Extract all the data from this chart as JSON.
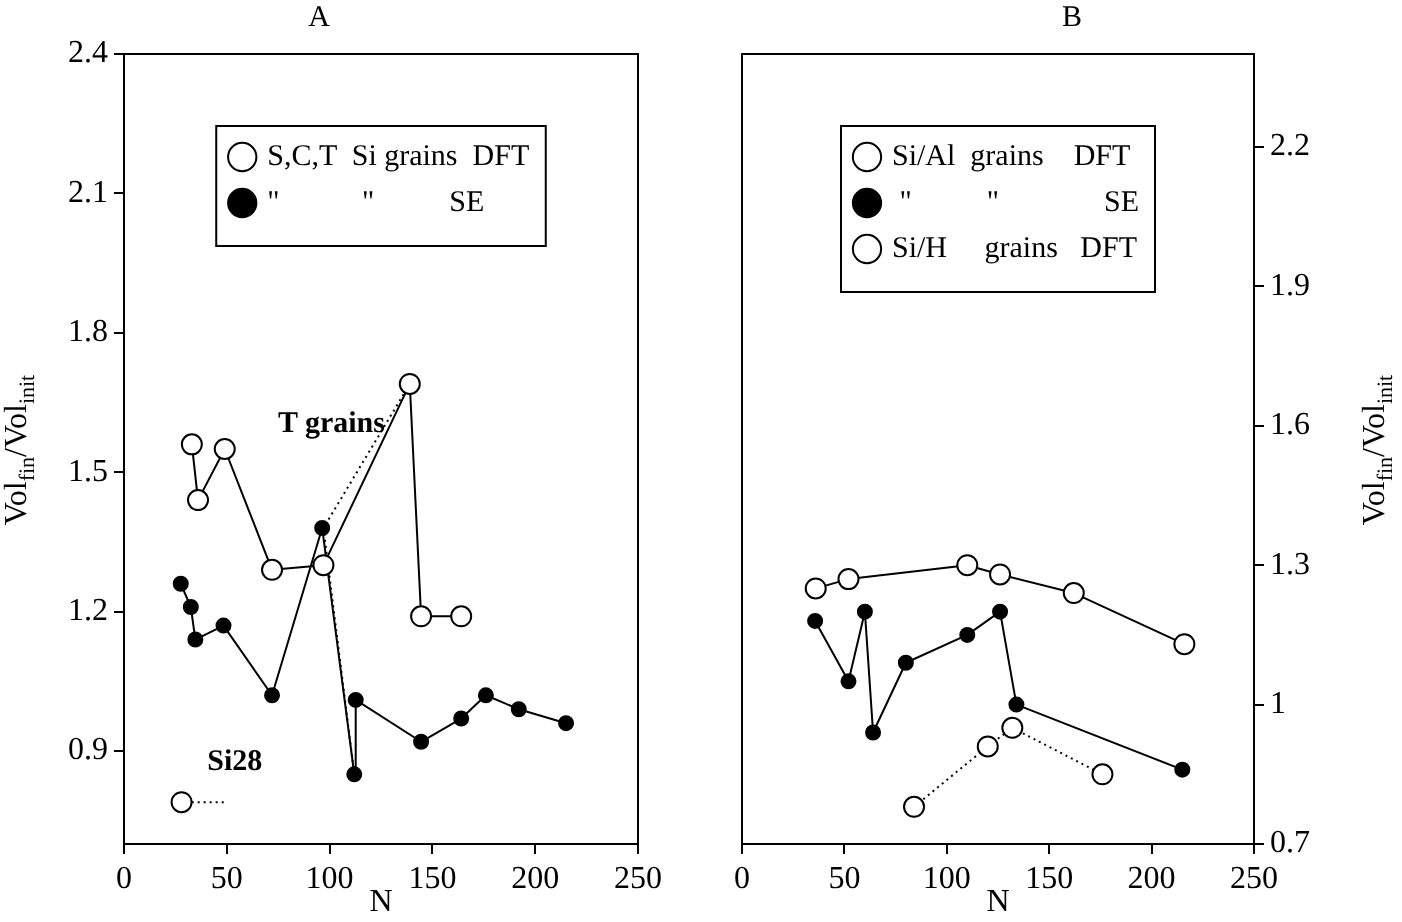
{
  "chart_data": [
    {
      "type": "line",
      "title": "A",
      "xlabel": "N",
      "ylabel": "Vol$_{fin}$/Vol$_{init}$",
      "xlim": [
        0,
        250
      ],
      "xticks": [
        0,
        50,
        100,
        150,
        200,
        250
      ],
      "ylim": [
        0.7,
        2.4
      ],
      "yticks": [
        0.9,
        1.2,
        1.5,
        1.8,
        2.1,
        2.4
      ],
      "grid": false,
      "legend": "top",
      "marker": "circle",
      "annotations": [
        {
          "text": "T grains",
          "x": 97,
          "y": 1.38
        },
        {
          "text": "Si28",
          "x": 50,
          "y": 0.79
        }
      ],
      "series": [
        {
          "name": "S,C,T  Si grains  DFT",
          "color": "#000000",
          "marker": "circle-open",
          "x": [
            33,
            36,
            49,
            72,
            97,
            139,
            144.5,
            164
          ],
          "values": [
            1.56,
            1.44,
            1.55,
            1.29,
            1.3,
            1.69,
            1.19,
            1.19
          ]
        },
        {
          "name": "\"           \"          SE",
          "color": "#000000",
          "x": [
            27.6,
            32.5,
            34.7,
            48.4,
            72,
            96.4,
            112,
            112.7,
            144.5,
            164,
            176,
            192,
            215
          ],
          "values": [
            1.26,
            1.21,
            1.14,
            1.17,
            1.02,
            1.38,
            0.85,
            1.01,
            0.92,
            0.97,
            1.02,
            0.99,
            0.96
          ]
        },
        {
          "color": "#000000",
          "marker": "circle-open",
          "x": [
            28
          ],
          "values": [
            0.79
          ]
        },
        {
          "color": "#000000",
          "marker": "none",
          "line_style": "dotted",
          "x": [
            139,
            97,
            112
          ],
          "values": [
            1.69,
            1.38,
            0.85
          ]
        },
        {
          "color": "#000000",
          "marker": "none",
          "line_style": "dotted",
          "x": [
            30,
            50
          ],
          "values": [
            0.79,
            0.79
          ]
        }
      ]
    },
    {
      "type": "line",
      "title": "B",
      "xlabel": "N",
      "y2label": "Vol$_{fin}$/Vol$_{init}$",
      "xlim": [
        0,
        250
      ],
      "xticks": [
        0,
        50,
        100,
        150,
        200,
        250
      ],
      "y2lim": [
        0.7,
        2.4
      ],
      "y2ticks": [
        0.7,
        1,
        1.3,
        1.6,
        1.9,
        2.2
      ],
      "grid": false,
      "legend": "top",
      "marker": "circle",
      "series": [
        {
          "name": "Si/Al  grains    DFT",
          "color": "#000000",
          "axis": "y2",
          "marker": "circle-open",
          "x": [
            36,
            52,
            110,
            126,
            162,
            216
          ],
          "values": [
            1.25,
            1.27,
            1.3,
            1.28,
            1.24,
            1.13
          ]
        },
        {
          "name": " \"          \"              SE",
          "color": "#000000",
          "axis": "y2",
          "x": [
            35.7,
            52,
            60,
            64,
            80,
            110,
            126,
            134,
            215
          ],
          "values": [
            1.18,
            1.05,
            1.2,
            0.94,
            1.09,
            1.15,
            1.2,
            1.0,
            0.86
          ]
        },
        {
          "name": "Si/H     grains   DFT",
          "color": "#000000",
          "axis": "y2",
          "marker": "circle-open",
          "line_style": "dotted",
          "x": [
            84,
            120,
            132,
            176
          ],
          "values": [
            0.78,
            0.91,
            0.95,
            0.85
          ]
        }
      ]
    }
  ]
}
